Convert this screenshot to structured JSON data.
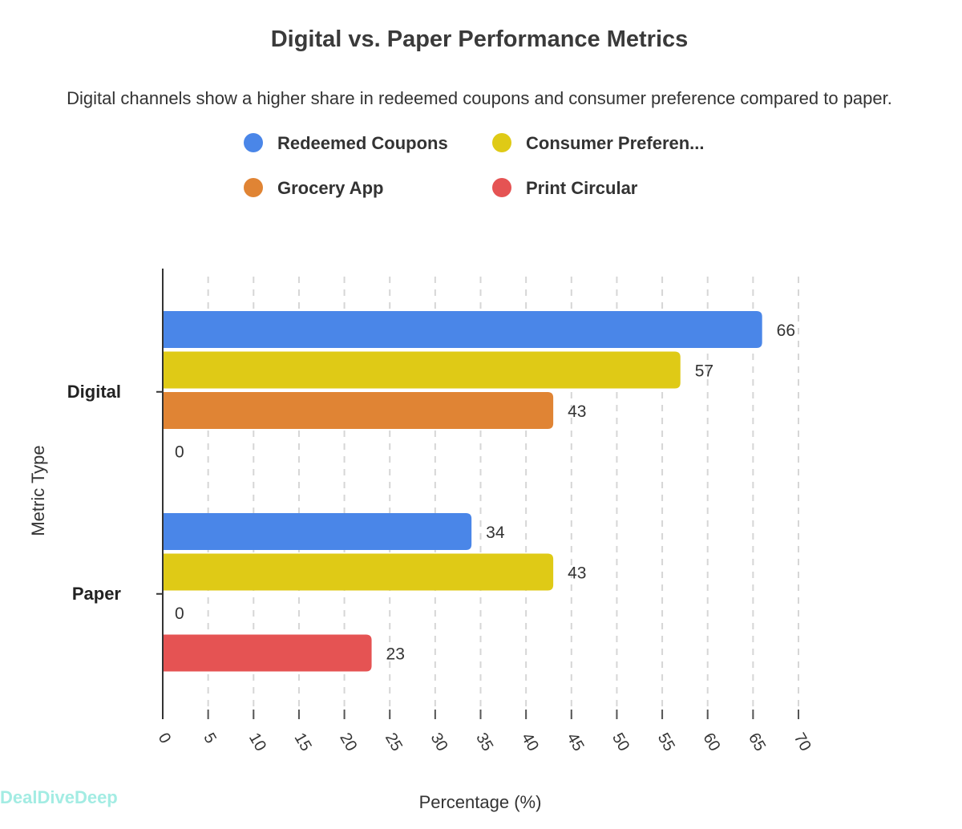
{
  "watermark": "DealDiveDeep",
  "chart_data": {
    "type": "bar",
    "orientation": "horizontal",
    "title": "Digital vs. Paper Performance Metrics",
    "subtitle": "Digital channels show a higher share in redeemed coupons and consumer preference compared to paper.",
    "xlabel": "Percentage (%)",
    "ylabel": "Metric Type",
    "categories": [
      "Digital",
      "Paper"
    ],
    "series": [
      {
        "name": "Redeemed Coupons",
        "color": "#4a86e8",
        "values": [
          66,
          34
        ]
      },
      {
        "name": "Consumer Preferen...",
        "color": "#dfca16",
        "values": [
          57,
          43
        ]
      },
      {
        "name": "Grocery App",
        "color": "#e08434",
        "values": [
          43,
          0
        ]
      },
      {
        "name": "Print Circular",
        "color": "#e55353",
        "values": [
          0,
          23
        ]
      }
    ],
    "xlim": [
      0,
      70
    ],
    "xticks": [
      0,
      5,
      10,
      15,
      20,
      25,
      30,
      35,
      40,
      45,
      50,
      55,
      60,
      65,
      70
    ],
    "grid": "vertical dashed",
    "legend": "top",
    "data_labels": true
  }
}
